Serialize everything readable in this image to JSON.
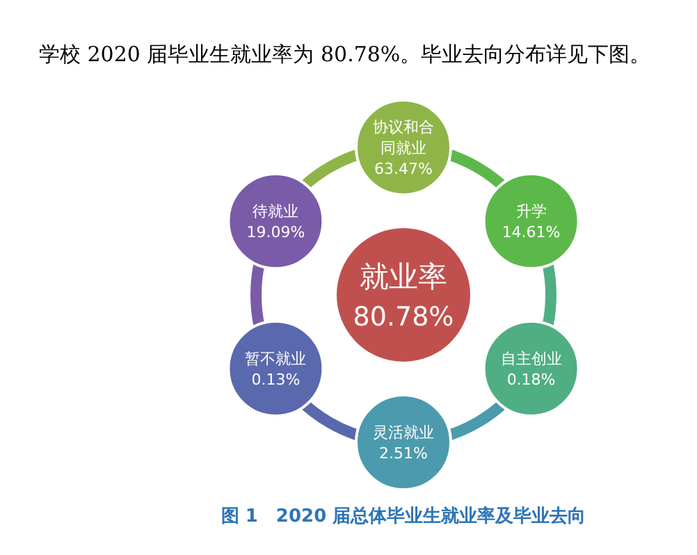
{
  "chart_data": {
    "type": "other",
    "title": "学校 2020 届毕业生就业率为 80.78%。毕业去向分布详见下图。",
    "categories": [
      "协议和合同就业",
      "升学",
      "自主创业",
      "灵活就业",
      "暂不就业",
      "待就业"
    ],
    "values": [
      63.47,
      14.61,
      0.18,
      2.51,
      0.13,
      19.09
    ],
    "value_labels": [
      "63.47%",
      "14.61%",
      "0.18%",
      "2.51%",
      "0.13%",
      "19.09%"
    ],
    "data_labels": true,
    "colors": [
      "#8fb548",
      "#5db84a",
      "#4fae84",
      "#4c9aae",
      "#5a68ad",
      "#7a5ba8"
    ],
    "annotations": [
      "就业率",
      "80.78%",
      "图 1　2020 届总体毕业生就业率及毕业去向"
    ]
  }
}
